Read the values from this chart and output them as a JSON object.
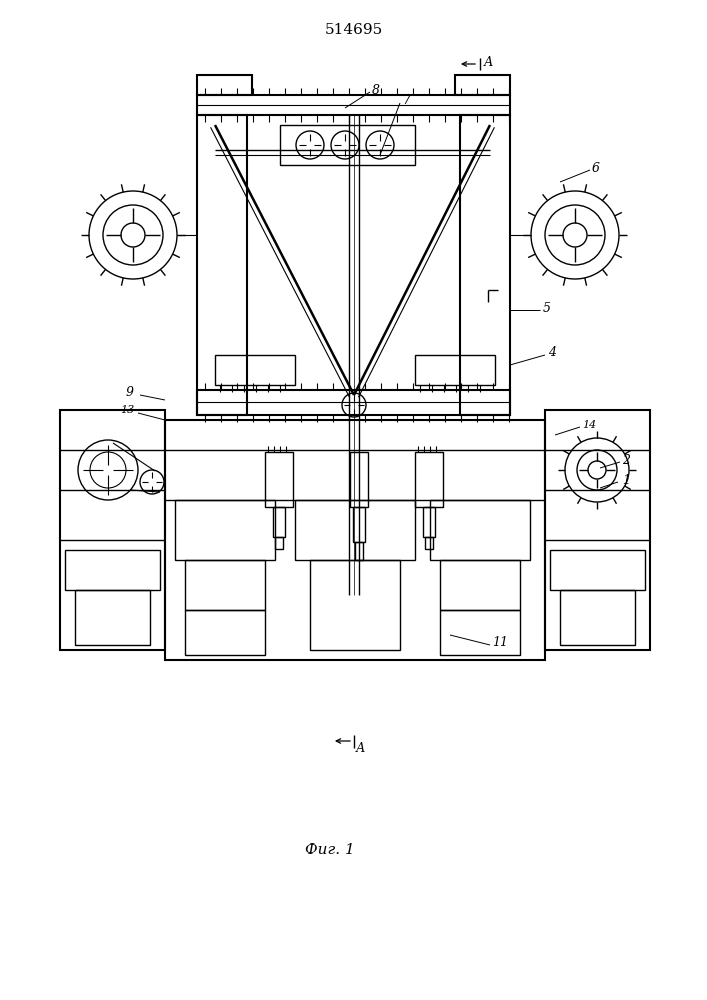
{
  "title": "514695",
  "fig_label": "Фиг. 1",
  "bg_color": "#ffffff",
  "line_color": "#000000"
}
